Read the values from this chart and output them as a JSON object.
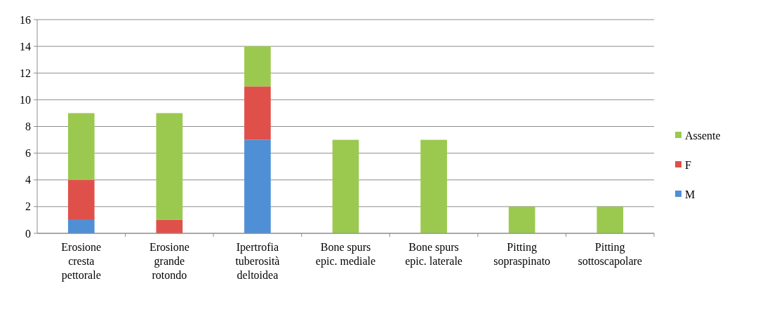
{
  "chart_data": {
    "type": "bar",
    "stacked": true,
    "categories": [
      "Erosione\ncresta\npettorale",
      "Erosione\ngrande\nrotondo",
      "Ipertrofia\ntuberosità\ndeltoidea",
      "Bone spurs\nepic. mediale",
      "Bone spurs\nepic. laterale",
      "Pitting\nsopraspinato",
      "Pitting\nsottoscapolare"
    ],
    "series": [
      {
        "name": "M",
        "color": "#4f8fd6",
        "values": [
          1,
          0,
          7,
          0,
          0,
          0,
          0
        ]
      },
      {
        "name": "F",
        "color": "#e0504a",
        "values": [
          3,
          1,
          4,
          0,
          0,
          0,
          0
        ]
      },
      {
        "name": "Assente",
        "color": "#9bc94f",
        "values": [
          5,
          8,
          3,
          7,
          7,
          2,
          2
        ]
      }
    ],
    "ylim": [
      0,
      16
    ],
    "yticks": [
      0,
      2,
      4,
      6,
      8,
      10,
      12,
      14,
      16
    ],
    "grid": "y",
    "legend": "right"
  }
}
